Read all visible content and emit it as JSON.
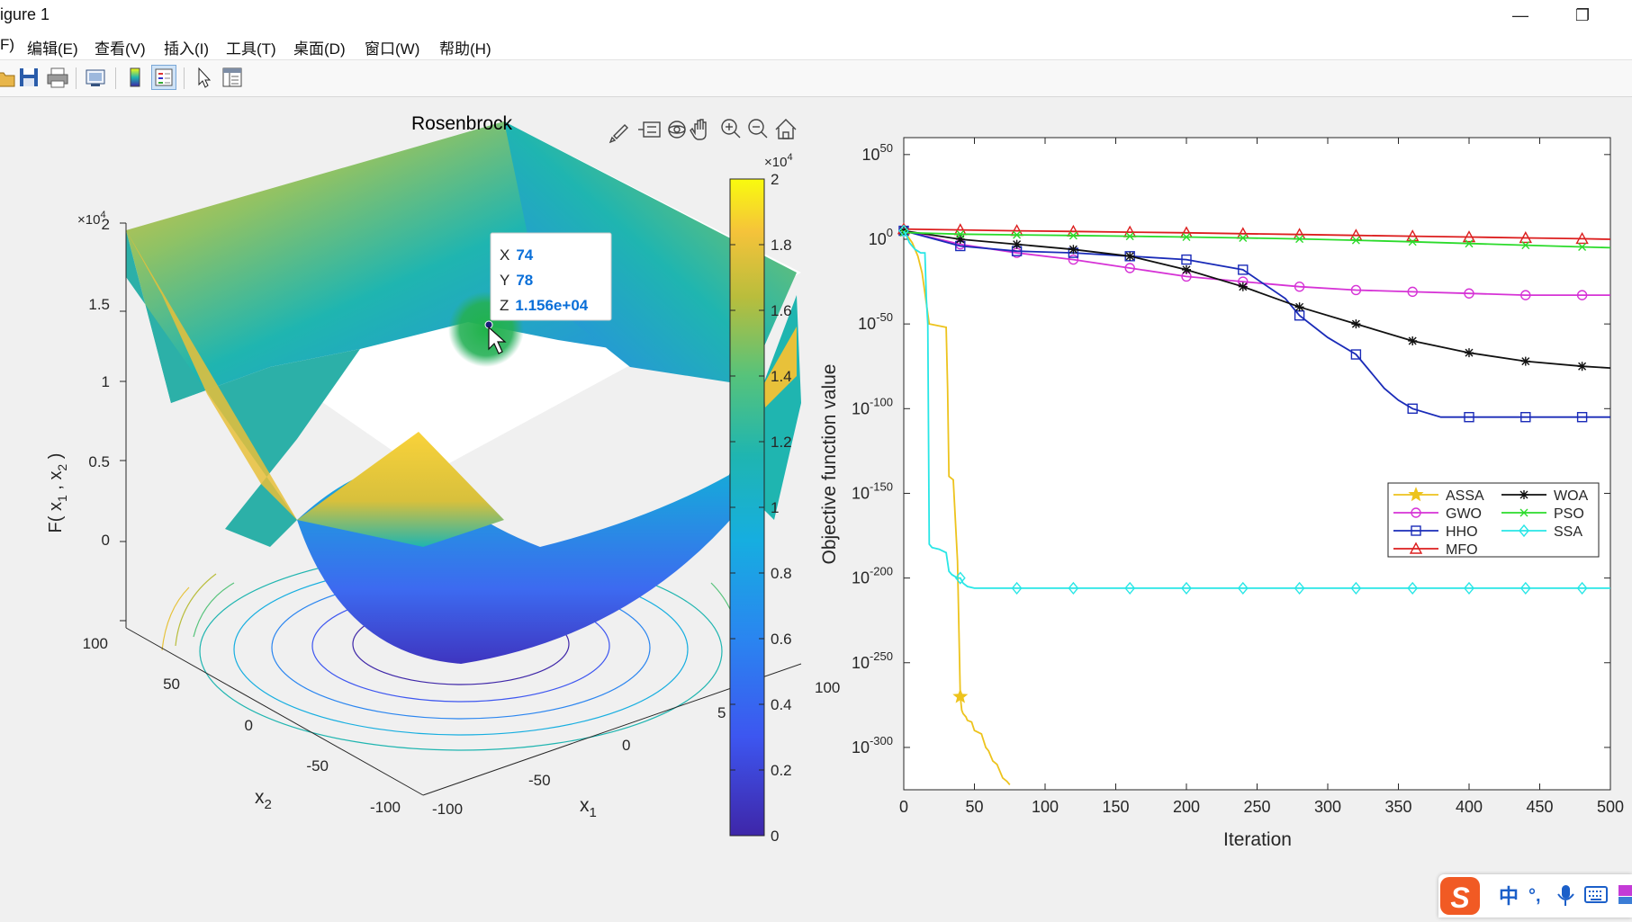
{
  "window": {
    "title": "igure 1",
    "minimize_glyph": "—",
    "restore_glyph": "❐"
  },
  "menu": [
    {
      "label": "F)"
    },
    {
      "label": "编辑(E)"
    },
    {
      "label": "查看(V)"
    },
    {
      "label": "插入(I)"
    },
    {
      "label": "工具(T)"
    },
    {
      "label": "桌面(D)"
    },
    {
      "label": "窗口(W)"
    },
    {
      "label": "帮助(H)"
    }
  ],
  "toolbar_icons": [
    "open-file-icon",
    "save-icon",
    "print-icon",
    "link-plot-icon",
    "colorbar-icon",
    "legend-icon",
    "pointer-icon",
    "property-inspector-icon"
  ],
  "axes_toolbar_icons": [
    "brush-icon",
    "data-tips-icon",
    "rotate-3d-icon",
    "pan-icon",
    "zoom-in-icon",
    "zoom-out-icon",
    "home-icon"
  ],
  "left_plot": {
    "title": "Rosenbrock",
    "z_exponent_base": "×10",
    "z_exponent_power": "4",
    "z_ticks": [
      "0",
      "0.5",
      "1",
      "1.5",
      "2"
    ],
    "zlabel": "F( x 1 , x 2 )",
    "zlabel_main": "F( x",
    "zlabel_sub1": "1",
    "zlabel_mid": " , x",
    "zlabel_sub2": "2",
    "zlabel_end": " )",
    "x2_ticks": [
      "100",
      "50",
      "0",
      "-50",
      "-100"
    ],
    "x1_ticks": [
      "-100",
      "-50",
      "0",
      "5",
      "100"
    ],
    "x2_label": "x",
    "x2_sub": "2",
    "x1_label": "x",
    "x1_sub": "1",
    "colorbar_ticks": [
      "0",
      "0.2",
      "0.4",
      "0.6",
      "0.8",
      "1",
      "1.2",
      "1.4",
      "1.6",
      "1.8",
      "2"
    ],
    "colorbar_exp_base": "×10",
    "colorbar_exp_power": "4",
    "colors": {
      "high": "#f9fb0e",
      "mid": "#1fb5b0",
      "low": "#3e26a8"
    },
    "datatip": {
      "x_label": "X",
      "x_value": "74",
      "y_label": "Y",
      "y_value": "78",
      "z_label": "Z",
      "z_value": "1.156e+04",
      "value_color": "#0a6fd8"
    }
  },
  "chart_data": {
    "type": "line",
    "title": "",
    "xlabel": "Iteration",
    "ylabel": "Objective function value",
    "y_scale": "log10",
    "xlim": [
      0,
      500
    ],
    "ylim_exponent": [
      -320,
      50
    ],
    "x_tick_labels": [
      "0",
      "50",
      "100",
      "150",
      "200",
      "250",
      "300",
      "350",
      "400",
      "450",
      "500"
    ],
    "y_tick_base": "10",
    "y_tick_exponents": [
      "50",
      "0",
      "-50",
      "-100",
      "-150",
      "-200",
      "-250",
      "-300"
    ],
    "legend_position": "right-center",
    "series": [
      {
        "name": "ASSA",
        "color": "#edc31d",
        "marker": "star",
        "x": [
          0,
          6,
          10,
          13,
          18,
          30,
          31,
          32,
          35,
          38,
          40,
          41,
          42,
          44,
          45,
          48,
          50,
          55,
          58,
          60,
          63,
          66,
          70,
          73,
          75
        ],
        "y_exp": [
          5,
          -2,
          -10,
          -20,
          -50,
          -52,
          -88,
          -140,
          -142,
          -190,
          -270,
          -278,
          -280,
          -282,
          -284,
          -285,
          -290,
          -292,
          -300,
          -302,
          -308,
          -310,
          -318,
          -320,
          -322
        ]
      },
      {
        "name": "GWO",
        "color": "#d633d6",
        "marker": "circle",
        "x": [
          0,
          40,
          80,
          120,
          160,
          200,
          240,
          280,
          320,
          360,
          400,
          440,
          480,
          500
        ],
        "y_exp": [
          5,
          -3,
          -8,
          -12,
          -17,
          -22,
          -25,
          -28,
          -30,
          -31,
          -32,
          -33,
          -33,
          -33
        ]
      },
      {
        "name": "HHO",
        "color": "#1a2bb8",
        "marker": "square",
        "x": [
          0,
          40,
          80,
          120,
          160,
          200,
          240,
          270,
          280,
          300,
          320,
          340,
          350,
          360,
          380,
          400,
          440,
          480,
          500
        ],
        "y_exp": [
          5,
          -4,
          -7,
          -8,
          -10,
          -12,
          -18,
          -35,
          -45,
          -58,
          -68,
          -88,
          -95,
          -100,
          -105,
          -105,
          -105,
          -105,
          -105
        ]
      },
      {
        "name": "MFO",
        "color": "#dc1e1e",
        "marker": "triangle",
        "x": [
          0,
          40,
          80,
          120,
          160,
          200,
          240,
          280,
          320,
          360,
          400,
          440,
          480,
          500
        ],
        "y_exp": [
          6,
          5.5,
          5,
          4.6,
          4.2,
          3.8,
          3.3,
          2.8,
          2.3,
          1.8,
          1.3,
          0.8,
          0.3,
          0
        ]
      },
      {
        "name": "WOA",
        "color": "#111111",
        "marker": "asterisk",
        "x": [
          0,
          40,
          80,
          120,
          160,
          200,
          240,
          280,
          320,
          360,
          400,
          440,
          480,
          500
        ],
        "y_exp": [
          5,
          0,
          -3,
          -6,
          -10,
          -18,
          -28,
          -40,
          -50,
          -60,
          -67,
          -72,
          -75,
          -76
        ]
      },
      {
        "name": "PSO",
        "color": "#2bdb2b",
        "marker": "x",
        "x": [
          0,
          40,
          80,
          120,
          160,
          200,
          240,
          280,
          320,
          360,
          400,
          440,
          480,
          500
        ],
        "y_exp": [
          4,
          3,
          2.6,
          2.2,
          1.8,
          1.3,
          0.8,
          0.2,
          -0.6,
          -1.5,
          -2.5,
          -3.5,
          -4.5,
          -5
        ]
      },
      {
        "name": "SSA",
        "color": "#28e6e6",
        "marker": "diamond",
        "x": [
          0,
          2,
          4,
          6,
          8,
          10,
          12,
          15,
          16,
          17,
          18,
          20,
          25,
          30,
          32,
          34,
          36,
          38,
          40,
          42,
          45,
          50,
          60,
          80,
          120,
          160,
          200,
          240,
          280,
          320,
          360,
          400,
          440,
          480,
          500
        ],
        "y_exp": [
          5,
          2,
          -2,
          -4,
          -6,
          -7,
          -8,
          -8,
          -35,
          -50,
          -180,
          -182,
          -183,
          -185,
          -196,
          -198,
          -199,
          -200,
          -200,
          -203,
          -205,
          -206,
          -206,
          -206,
          -206,
          -206,
          -206,
          -206,
          -206,
          -206,
          -206,
          -206,
          -206,
          -206,
          -206
        ]
      }
    ]
  },
  "ime": {
    "logo": "S",
    "lang": "中",
    "punct": "°,",
    "mic": "🎤",
    "kbd": "⌨"
  }
}
